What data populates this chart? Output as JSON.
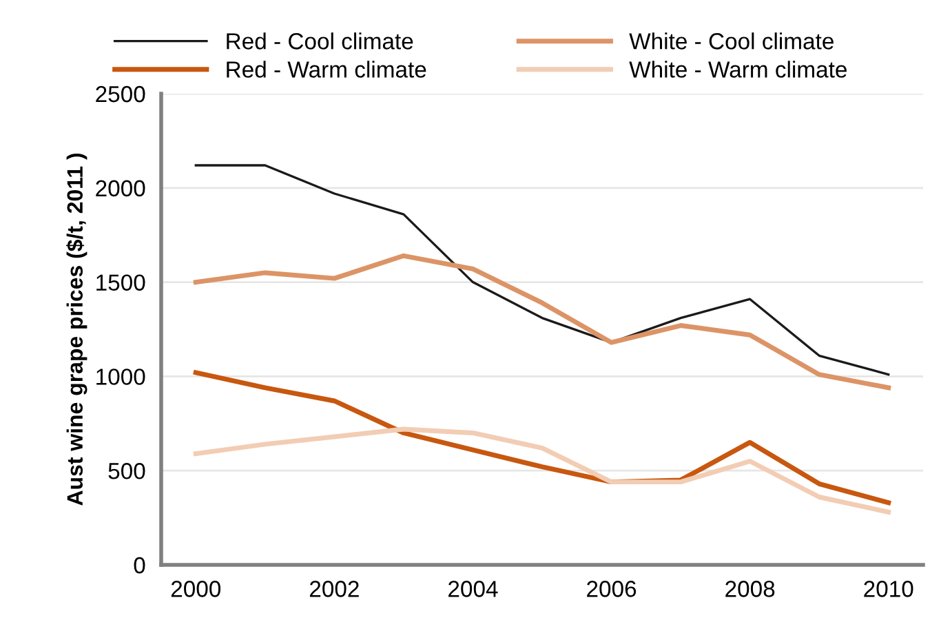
{
  "chart_data": {
    "type": "line",
    "ylabel": "Aust wine grape prices ($/t, 2011 )",
    "x": [
      2000,
      2001,
      2002,
      2003,
      2004,
      2005,
      2006,
      2007,
      2008,
      2009,
      2010
    ],
    "series": [
      {
        "name": "Red - Cool climate",
        "color": "#1a1a1a",
        "values": [
          2120,
          2120,
          1970,
          1860,
          1500,
          1310,
          1180,
          1310,
          1410,
          1110,
          1010
        ]
      },
      {
        "name": "Red - Warm climate",
        "color": "#c8570f",
        "values": [
          1020,
          940,
          870,
          700,
          610,
          520,
          440,
          450,
          650,
          430,
          330
        ]
      },
      {
        "name": "White - Cool climate",
        "color": "#dc9466",
        "values": [
          1500,
          1550,
          1520,
          1640,
          1570,
          1390,
          1180,
          1270,
          1220,
          1010,
          940
        ]
      },
      {
        "name": "White - Warm climate",
        "color": "#f2cdb4",
        "values": [
          590,
          640,
          680,
          720,
          700,
          620,
          440,
          440,
          550,
          360,
          280
        ]
      }
    ],
    "xlim": [
      1999.5,
      2010.5
    ],
    "xticks": [
      2000,
      2002,
      2004,
      2006,
      2008,
      2010
    ],
    "ylim": [
      0,
      2500
    ],
    "yticks": [
      0,
      500,
      1000,
      1500,
      2000,
      2500
    ],
    "grid": "y",
    "legend": "top",
    "marker": "none",
    "line_style": "solid"
  }
}
